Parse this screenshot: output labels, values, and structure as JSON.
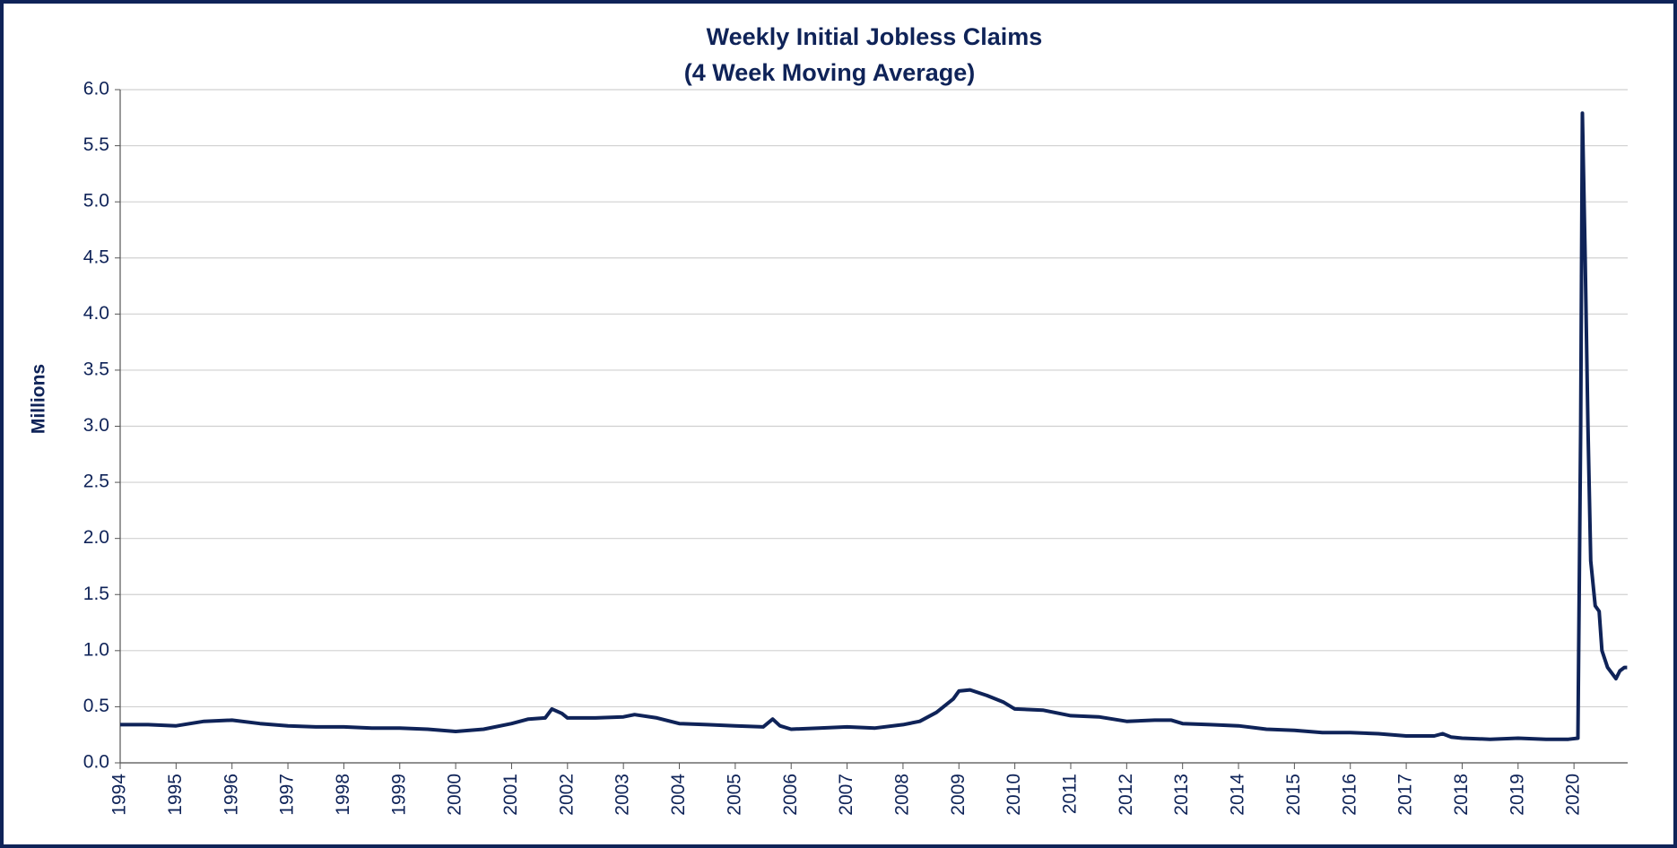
{
  "chart_data": {
    "type": "line",
    "title": "Weekly Initial Jobless Claims",
    "subtitle": "(4 Week Moving  Average)",
    "y_label": "Millions",
    "color": "#0f2358",
    "grid": true,
    "xlim": [
      1994,
      2020.96
    ],
    "ylim": [
      0,
      6
    ],
    "xticks": [
      1994,
      1995,
      1996,
      1997,
      1998,
      1999,
      2000,
      2001,
      2002,
      2003,
      2004,
      2005,
      2006,
      2007,
      2008,
      2009,
      2010,
      2011,
      2012,
      2013,
      2014,
      2015,
      2016,
      2017,
      2018,
      2019,
      2020
    ],
    "yticks": [
      {
        "value": 0,
        "label": "0.0"
      },
      {
        "value": 0.5,
        "label": "0.5"
      },
      {
        "value": 1,
        "label": "1.0"
      },
      {
        "value": 1.5,
        "label": "1.5"
      },
      {
        "value": 2,
        "label": "2.0"
      },
      {
        "value": 2.5,
        "label": "2.5"
      },
      {
        "value": 3,
        "label": "3.0"
      },
      {
        "value": 3.5,
        "label": "3.5"
      },
      {
        "value": 4,
        "label": "4.0"
      },
      {
        "value": 4.5,
        "label": "4.5"
      },
      {
        "value": 5,
        "label": "5.0"
      },
      {
        "value": 5.5,
        "label": "5.5"
      },
      {
        "value": 6,
        "label": "6.0"
      }
    ],
    "x": [
      1994,
      1994.5,
      1995,
      1995.5,
      1996,
      1996.5,
      1997,
      1997.5,
      1998,
      1998.5,
      1999,
      1999.5,
      2000,
      2000.5,
      2001,
      2001.3,
      2001.6,
      2001.72,
      2001.9,
      2002,
      2002.5,
      2003,
      2003.2,
      2003.6,
      2004,
      2004.5,
      2005,
      2005.5,
      2005.67,
      2005.8,
      2006,
      2006.5,
      2007,
      2007.5,
      2008,
      2008.3,
      2008.6,
      2008.9,
      2009,
      2009.2,
      2009.5,
      2009.8,
      2010,
      2010.5,
      2011,
      2011.5,
      2012,
      2012.5,
      2012.8,
      2013,
      2013.5,
      2014,
      2014.5,
      2015,
      2015.5,
      2016,
      2016.5,
      2017,
      2017.5,
      2017.65,
      2017.8,
      2018,
      2018.5,
      2019,
      2019.5,
      2019.9,
      2020.07,
      2020.12,
      2020.15,
      2020.2,
      2020.25,
      2020.3,
      2020.38,
      2020.45,
      2020.5,
      2020.6,
      2020.75,
      2020.82,
      2020.9,
      2020.95
    ],
    "values": [
      0.34,
      0.34,
      0.33,
      0.37,
      0.38,
      0.35,
      0.33,
      0.32,
      0.32,
      0.31,
      0.31,
      0.3,
      0.28,
      0.3,
      0.35,
      0.39,
      0.4,
      0.48,
      0.44,
      0.4,
      0.4,
      0.41,
      0.43,
      0.4,
      0.35,
      0.34,
      0.33,
      0.32,
      0.39,
      0.33,
      0.3,
      0.31,
      0.32,
      0.31,
      0.34,
      0.37,
      0.45,
      0.57,
      0.64,
      0.65,
      0.6,
      0.54,
      0.48,
      0.47,
      0.42,
      0.41,
      0.37,
      0.38,
      0.38,
      0.35,
      0.34,
      0.33,
      0.3,
      0.29,
      0.27,
      0.27,
      0.26,
      0.24,
      0.24,
      0.26,
      0.23,
      0.22,
      0.21,
      0.22,
      0.21,
      0.21,
      0.22,
      3.0,
      5.79,
      4.5,
      3.0,
      1.8,
      1.4,
      1.35,
      1.0,
      0.85,
      0.75,
      0.82,
      0.85,
      0.85
    ]
  }
}
